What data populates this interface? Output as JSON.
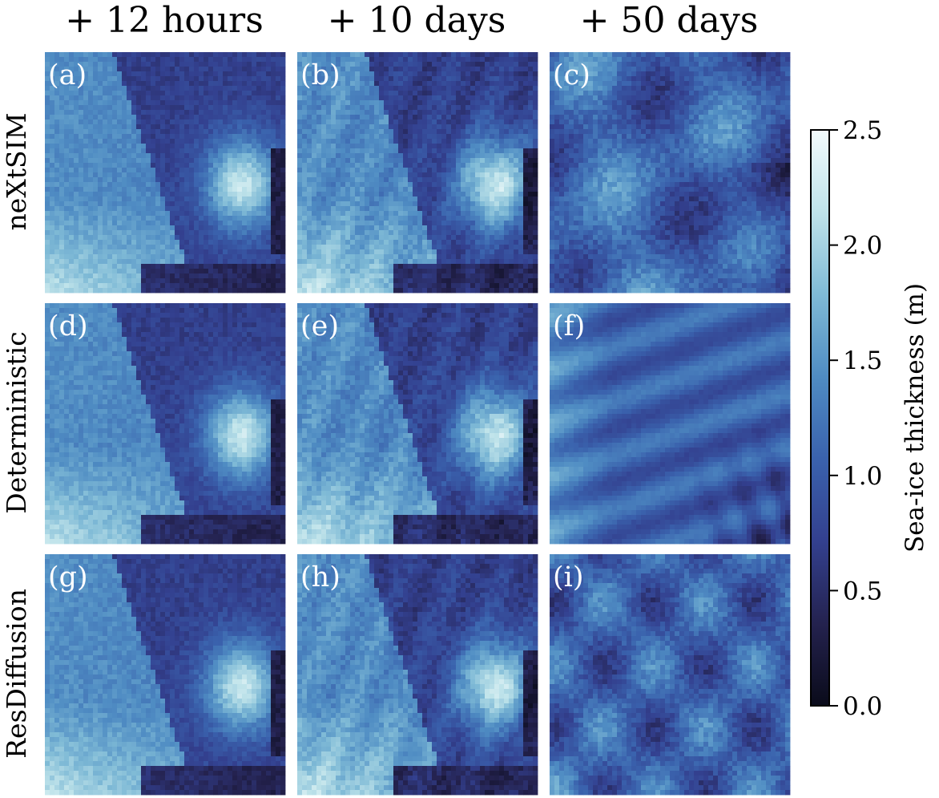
{
  "columns": [
    "+ 12 hours",
    "+ 10 days",
    "+ 50 days"
  ],
  "rows": [
    "neXtSIM",
    "Deterministic",
    "ResDiffusion"
  ],
  "panel_labels": [
    "(a)",
    "(b)",
    "(c)",
    "(d)",
    "(e)",
    "(f)",
    "(g)",
    "(h)",
    "(i)"
  ],
  "colorbar": {
    "label": "Sea-ice thickness (m)",
    "range": [
      0.0,
      2.5
    ],
    "ticks": [
      "0.0",
      "0.5",
      "1.0",
      "1.5",
      "2.0",
      "2.5"
    ],
    "tick_values": [
      0.0,
      0.5,
      1.0,
      1.5,
      2.0,
      2.5
    ],
    "stops": [
      "#0a0b1a",
      "#24224f",
      "#33408f",
      "#3a62ad",
      "#4f8cc3",
      "#7fbad6",
      "#bfe3ea",
      "#f3fbfc"
    ]
  },
  "chart_data": {
    "type": "heatmap",
    "grid": "3x3",
    "variable": "Sea-ice thickness (m)",
    "value_range": [
      0.0,
      2.5
    ]
  }
}
